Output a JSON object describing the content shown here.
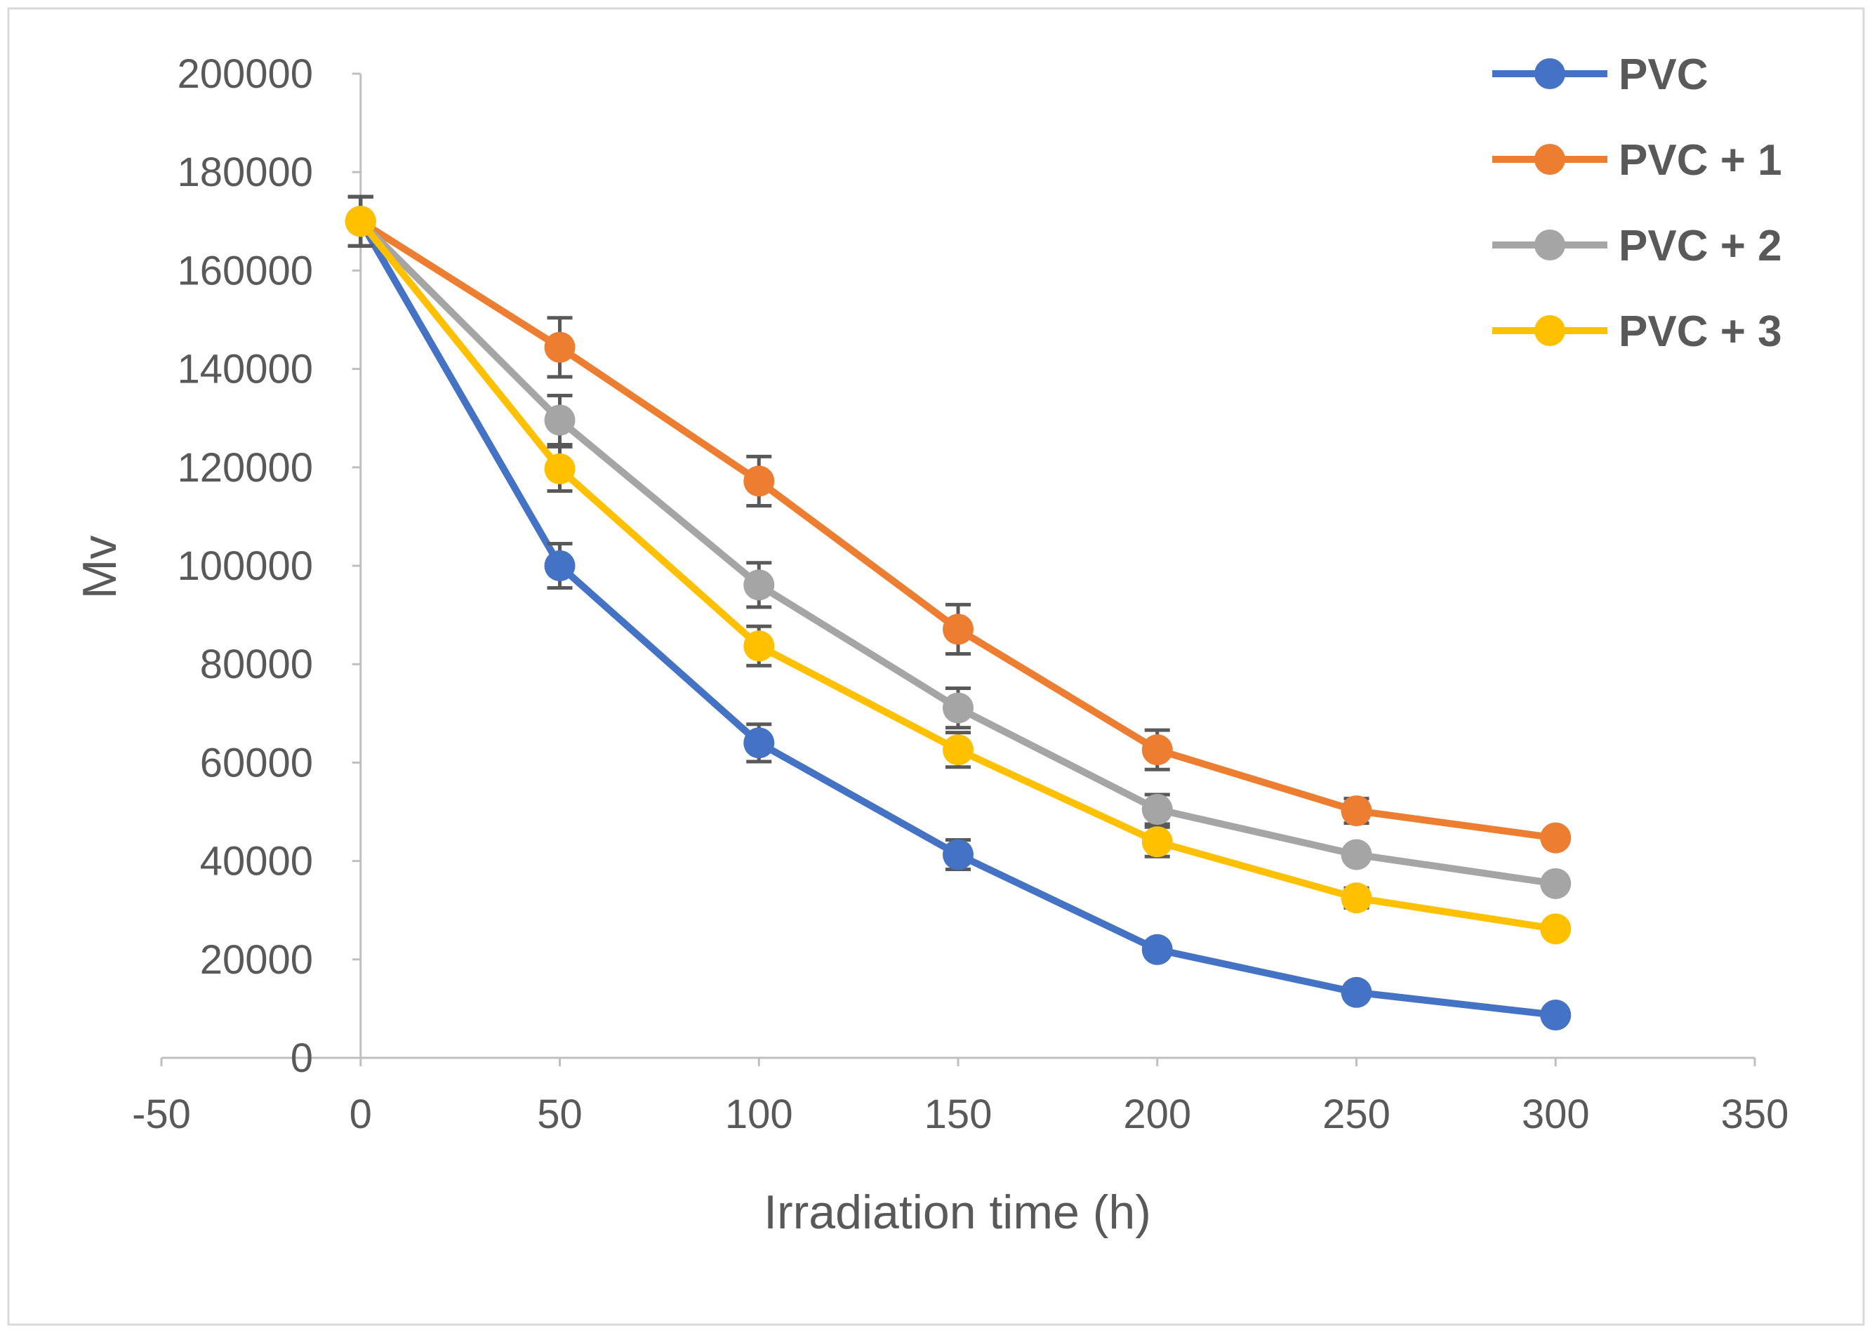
{
  "chart_data": {
    "type": "line",
    "title": "",
    "xlabel": "Irradiation time (h)",
    "ylabel": "Mv",
    "xlim": [
      -50,
      350
    ],
    "ylim": [
      0,
      200000
    ],
    "xticks": [
      -50,
      0,
      50,
      100,
      150,
      200,
      250,
      300,
      350
    ],
    "yticks": [
      0,
      20000,
      40000,
      60000,
      80000,
      100000,
      120000,
      140000,
      160000,
      180000,
      200000
    ],
    "grid": false,
    "legend_position": "top-right",
    "x": [
      0,
      50,
      100,
      150,
      200,
      250,
      300
    ],
    "series": [
      {
        "name": "PVC",
        "color": "#4472C4",
        "values": [
          170000,
          100000,
          64000,
          41300,
          22000,
          13300,
          8700
        ],
        "errors": [
          5000,
          4500,
          3800,
          3000,
          1500,
          1000,
          800
        ]
      },
      {
        "name": "PVC + 1",
        "color": "#ED7D31",
        "values": [
          170000,
          144400,
          117200,
          87100,
          62600,
          50200,
          44700
        ],
        "errors": [
          5000,
          6000,
          5000,
          5000,
          4000,
          2500,
          1500
        ]
      },
      {
        "name": "PVC + 2",
        "color": "#A5A5A5",
        "values": [
          170000,
          129600,
          96100,
          71100,
          50500,
          41300,
          35400
        ],
        "errors": [
          5000,
          5000,
          4500,
          4000,
          3000,
          1500,
          1000
        ]
      },
      {
        "name": "PVC + 3",
        "color": "#FFC000",
        "values": [
          170000,
          119700,
          83700,
          62600,
          43900,
          32500,
          26200
        ],
        "errors": [
          5000,
          4500,
          4000,
          3500,
          3000,
          2000,
          1000
        ]
      }
    ]
  }
}
